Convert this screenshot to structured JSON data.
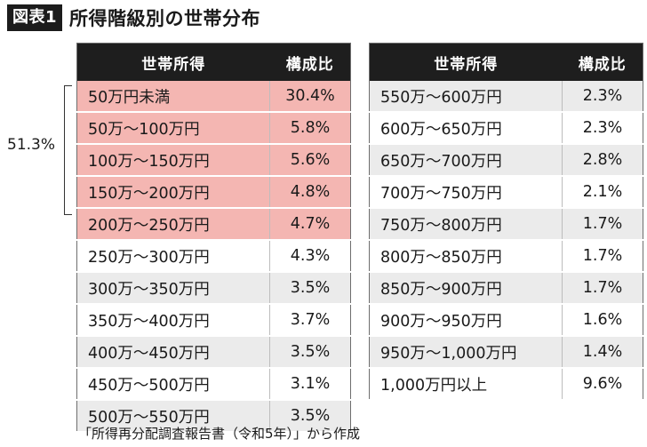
{
  "header": {
    "badge": "図表1",
    "title": "所得階級別の世帯分布"
  },
  "columns": {
    "income": "世帯所得",
    "share": "構成比"
  },
  "left_rows": [
    {
      "range": "50万円未満",
      "share": "30.4%"
    },
    {
      "range": "50万～100万円",
      "share": "5.8%"
    },
    {
      "range": "100万～150万円",
      "share": "5.6%"
    },
    {
      "range": "150万～200万円",
      "share": "4.8%"
    },
    {
      "range": "200万～250万円",
      "share": "4.7%"
    },
    {
      "range": "250万～300万円",
      "share": "4.3%"
    },
    {
      "range": "300万～350万円",
      "share": "3.5%"
    },
    {
      "range": "350万～400万円",
      "share": "3.7%"
    },
    {
      "range": "400万～450万円",
      "share": "3.5%"
    },
    {
      "range": "450万～500万円",
      "share": "3.1%"
    },
    {
      "range": "500万～550万円",
      "share": "3.5%"
    }
  ],
  "right_rows": [
    {
      "range": "550万～600万円",
      "share": "2.3%"
    },
    {
      "range": "600万～650万円",
      "share": "2.3%"
    },
    {
      "range": "650万～700万円",
      "share": "2.8%"
    },
    {
      "range": "700万～750万円",
      "share": "2.1%"
    },
    {
      "range": "750万～800万円",
      "share": "1.7%"
    },
    {
      "range": "800万～850万円",
      "share": "1.7%"
    },
    {
      "range": "850万～900万円",
      "share": "1.7%"
    },
    {
      "range": "900万～950万円",
      "share": "1.6%"
    },
    {
      "range": "950万～1,000万円",
      "share": "1.4%"
    },
    {
      "range": "1,000万円以上",
      "share": "9.6%"
    }
  ],
  "bracket_total": "51.3%",
  "source": "「所得再分配調査報告書（令和5年）」から作成",
  "colors": {
    "header_bg": "#1e1e1e",
    "highlight": "#f4b6b2",
    "stripe": "#ebebeb"
  }
}
